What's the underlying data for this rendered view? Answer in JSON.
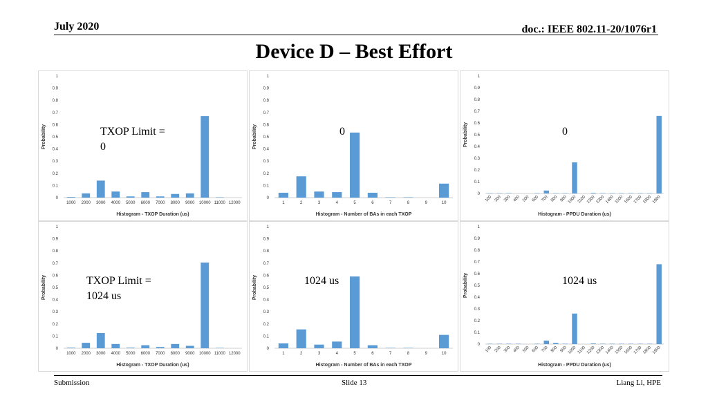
{
  "header": {
    "date": "July 2020",
    "doc": "doc.: IEEE 802.11-20/1076r1"
  },
  "title": "Device D – Best Effort",
  "footer": {
    "left": "Submission",
    "center": "Slide 13",
    "right": "Liang Li, HPE"
  },
  "annotations": {
    "r0c0_line1": "TXOP Limit =",
    "r0c0_line2": "0",
    "r0c1": "0",
    "r0c2": "0",
    "r1c0_line1": "TXOP Limit =",
    "r1c0_line2": "1024 us",
    "r1c1": "1024 us",
    "r1c2": "1024 us"
  },
  "colors": {
    "bar": "#5b9bd5"
  },
  "chart_data": [
    {
      "type": "bar",
      "xlabel": "Histogram - TXOP Duration (us)",
      "ylabel": "Probability",
      "ylim": [
        0,
        1
      ],
      "grid": false,
      "categories": [
        "1000",
        "2000",
        "3000",
        "4000",
        "5000",
        "6000",
        "7000",
        "8000",
        "9000",
        "10000",
        "11000",
        "12000"
      ],
      "values": [
        0.005,
        0.035,
        0.14,
        0.05,
        0.01,
        0.045,
        0.01,
        0.03,
        0.035,
        0.67,
        0.003,
        0.0
      ]
    },
    {
      "type": "bar",
      "xlabel": "Histogram - Number of BAs in each TXOP",
      "ylabel": "Probability",
      "ylim": [
        0,
        1
      ],
      "grid": false,
      "categories": [
        "1",
        "2",
        "3",
        "4",
        "5",
        "6",
        "7",
        "8",
        "9",
        "10"
      ],
      "values": [
        0.04,
        0.175,
        0.05,
        0.045,
        0.535,
        0.04,
        0.003,
        0.003,
        0.0,
        0.115
      ]
    },
    {
      "type": "bar",
      "xlabel": "Histogram - PPDU Duration (us)",
      "ylabel": "Probability",
      "ylim": [
        0,
        1
      ],
      "grid": false,
      "categories": [
        "100",
        "200",
        "300",
        "400",
        "500",
        "600",
        "700",
        "800",
        "900",
        "1000",
        "1100",
        "1200",
        "1300",
        "1400",
        "1500",
        "1600",
        "1700",
        "1800",
        "1900"
      ],
      "values": [
        0.003,
        0.003,
        0.003,
        0.0,
        0.0,
        0.003,
        0.025,
        0.003,
        0.003,
        0.265,
        0.0,
        0.005,
        0.003,
        0.003,
        0.003,
        0.003,
        0.003,
        0.003,
        0.66
      ]
    },
    {
      "type": "bar",
      "xlabel": "Histogram - TXOP Duration (us)",
      "ylabel": "Probability",
      "ylim": [
        0,
        1
      ],
      "grid": false,
      "categories": [
        "1000",
        "2000",
        "3000",
        "4000",
        "5000",
        "6000",
        "7000",
        "8000",
        "9000",
        "10000",
        "11000",
        "12000"
      ],
      "values": [
        0.005,
        0.045,
        0.125,
        0.035,
        0.005,
        0.025,
        0.01,
        0.035,
        0.02,
        0.705,
        0.003,
        0.0
      ]
    },
    {
      "type": "bar",
      "xlabel": "Histogram - Number of BAs in each TXOP",
      "ylabel": "Probability",
      "ylim": [
        0,
        1
      ],
      "grid": false,
      "categories": [
        "1",
        "2",
        "3",
        "4",
        "5",
        "6",
        "7",
        "8",
        "9",
        "10"
      ],
      "values": [
        0.04,
        0.155,
        0.03,
        0.055,
        0.59,
        0.025,
        0.003,
        0.003,
        0.0,
        0.11
      ]
    },
    {
      "type": "bar",
      "xlabel": "Histogram - PPDU Duration (us)",
      "ylabel": "Probability",
      "ylim": [
        0,
        1
      ],
      "grid": false,
      "categories": [
        "100",
        "200",
        "300",
        "400",
        "500",
        "600",
        "700",
        "800",
        "900",
        "1000",
        "1100",
        "1200",
        "1300",
        "1400",
        "1500",
        "1600",
        "1700",
        "1800",
        "1900"
      ],
      "values": [
        0.003,
        0.003,
        0.003,
        0.003,
        0.0,
        0.003,
        0.03,
        0.01,
        0.003,
        0.26,
        0.0,
        0.005,
        0.003,
        0.003,
        0.003,
        0.003,
        0.003,
        0.003,
        0.68
      ]
    }
  ]
}
